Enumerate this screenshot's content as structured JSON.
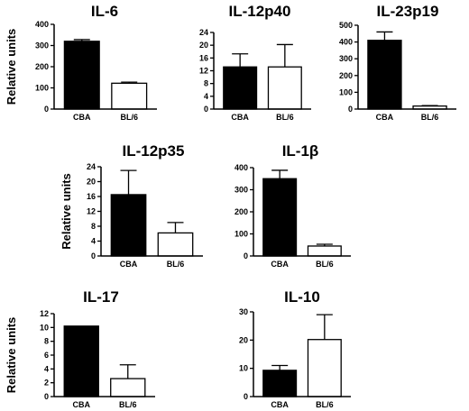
{
  "figure": {
    "ylabel": "Relative units"
  },
  "chart_data": [
    {
      "type": "bar",
      "title": "IL-6",
      "categories": [
        "CBA",
        "BL/6"
      ],
      "values": [
        320,
        122
      ],
      "errors": [
        8,
        5
      ],
      "fill": [
        "#000000",
        "#ffffff"
      ],
      "ylim": [
        0,
        400
      ],
      "yticks": [
        "0",
        "100",
        "200",
        "300",
        "400"
      ],
      "ylabel": "Relative units"
    },
    {
      "type": "bar",
      "title": "IL-12p40",
      "categories": [
        "CBA",
        "BL/6"
      ],
      "values": [
        13.2,
        13.2
      ],
      "errors": [
        4.1,
        7.0
      ],
      "fill": [
        "#000000",
        "#ffffff"
      ],
      "ylim": [
        0,
        24
      ],
      "yticks": [
        "0",
        "4",
        "8",
        "12",
        "16",
        "20",
        "24"
      ],
      "ylabel": ""
    },
    {
      "type": "bar",
      "title": "IL-23p19",
      "categories": [
        "CBA",
        "BL/6"
      ],
      "values": [
        410,
        18
      ],
      "errors": [
        50,
        3
      ],
      "fill": [
        "#000000",
        "#ffffff"
      ],
      "ylim": [
        0,
        500
      ],
      "yticks": [
        "0",
        "100",
        "200",
        "300",
        "400",
        "500"
      ],
      "ylabel": ""
    },
    {
      "type": "bar",
      "title": "IL-12p35",
      "categories": [
        "CBA",
        "BL/6"
      ],
      "values": [
        16.5,
        6.2
      ],
      "errors": [
        6.5,
        2.8
      ],
      "fill": [
        "#000000",
        "#ffffff"
      ],
      "ylim": [
        0,
        24
      ],
      "yticks": [
        "0",
        "4",
        "8",
        "12",
        "16",
        "20",
        "24"
      ],
      "ylabel": "Relative units"
    },
    {
      "type": "bar",
      "title": "IL-1β",
      "categories": [
        "CBA",
        "BL/6"
      ],
      "values": [
        350,
        45
      ],
      "errors": [
        38,
        8
      ],
      "fill": [
        "#000000",
        "#ffffff"
      ],
      "ylim": [
        0,
        400
      ],
      "yticks": [
        "0",
        "100",
        "200",
        "300",
        "400"
      ],
      "ylabel": ""
    },
    {
      "type": "bar",
      "title": "IL-17",
      "categories": [
        "CBA",
        "BL/6"
      ],
      "values": [
        10.2,
        2.6
      ],
      "errors": [
        0,
        2.0
      ],
      "fill": [
        "#000000",
        "#ffffff"
      ],
      "ylim": [
        0,
        12
      ],
      "yticks": [
        "0",
        "2",
        "4",
        "6",
        "8",
        "10",
        "12"
      ],
      "ylabel": "Relative units"
    },
    {
      "type": "bar",
      "title": "IL-10",
      "categories": [
        "CBA",
        "BL/6"
      ],
      "values": [
        9.3,
        20.2
      ],
      "errors": [
        1.7,
        8.8
      ],
      "fill": [
        "#000000",
        "#ffffff"
      ],
      "ylim": [
        0,
        30
      ],
      "yticks": [
        "0",
        "10",
        "20",
        "30"
      ],
      "ylabel": ""
    }
  ]
}
